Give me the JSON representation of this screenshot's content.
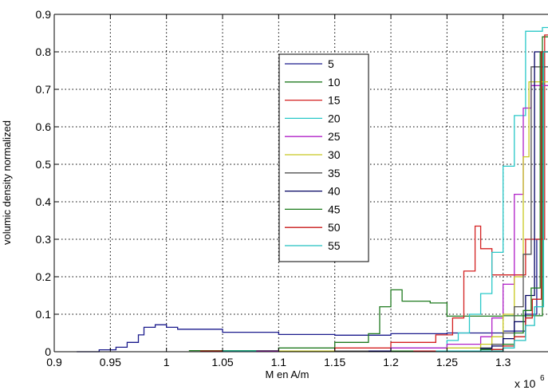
{
  "chart_data": {
    "type": "line",
    "step": true,
    "xlabel": "M en A/m",
    "ylabel": "volumic density normalized",
    "x_multiplier_label": "x 10",
    "x_multiplier_exponent": "6",
    "xlim": [
      0.9,
      1.34
    ],
    "ylim": [
      0,
      0.9
    ],
    "grid": true,
    "legend_position": "upper-center",
    "xticks": [
      0.9,
      0.95,
      1,
      1.05,
      1.1,
      1.15,
      1.2,
      1.25,
      1.3
    ],
    "xtick_labels": [
      "0.9",
      "0.95",
      "1",
      "1.05",
      "1.1",
      "1.15",
      "1.2",
      "1.25",
      "1.3"
    ],
    "yticks": [
      0,
      0.1,
      0.2,
      0.3,
      0.4,
      0.5,
      0.6,
      0.7,
      0.8,
      0.9
    ],
    "ytick_labels": [
      "0",
      "0.1",
      "0.2",
      "0.3",
      "0.4",
      "0.5",
      "0.6",
      "0.7",
      "0.8",
      "0.9"
    ],
    "series": [
      {
        "name": "5",
        "color": "#1a1a8c",
        "x": [
          0.92,
          0.94,
          0.955,
          0.965,
          0.975,
          0.98,
          0.99,
          1.0,
          1.01,
          1.05,
          1.1,
          1.15,
          1.2,
          1.25,
          1.3,
          1.32,
          1.33,
          1.334,
          1.34
        ],
        "y": [
          0.0,
          0.005,
          0.012,
          0.025,
          0.045,
          0.065,
          0.072,
          0.065,
          0.06,
          0.052,
          0.046,
          0.044,
          0.048,
          0.05,
          0.055,
          0.1,
          0.3,
          0.8,
          0.8
        ]
      },
      {
        "name": "10",
        "color": "#1f7a1f",
        "x": [
          1.02,
          1.1,
          1.15,
          1.18,
          1.19,
          1.2,
          1.21,
          1.235,
          1.24,
          1.25,
          1.3,
          1.335,
          1.34
        ],
        "y": [
          0.003,
          0.01,
          0.025,
          0.048,
          0.12,
          0.165,
          0.135,
          0.13,
          0.13,
          0.095,
          0.096,
          0.84,
          0.84
        ]
      },
      {
        "name": "15",
        "color": "#d42020",
        "x": [
          1.03,
          1.15,
          1.2,
          1.24,
          1.255,
          1.265,
          1.275,
          1.28,
          1.29,
          1.32,
          1.337,
          1.34
        ],
        "y": [
          0.002,
          0.01,
          0.025,
          0.045,
          0.09,
          0.215,
          0.335,
          0.275,
          0.205,
          0.3,
          0.845,
          0.845
        ]
      },
      {
        "name": "20",
        "color": "#28c8c8",
        "x": [
          1.05,
          1.2,
          1.25,
          1.26,
          1.27,
          1.28,
          1.29,
          1.3,
          1.31,
          1.32,
          1.335,
          1.34
        ],
        "y": [
          0.002,
          0.01,
          0.03,
          0.05,
          0.1,
          0.155,
          0.265,
          0.495,
          0.63,
          0.855,
          0.865,
          0.865
        ]
      },
      {
        "name": "25",
        "color": "#b020c8",
        "x": [
          1.08,
          1.2,
          1.25,
          1.28,
          1.29,
          1.3,
          1.31,
          1.318,
          1.325,
          1.34
        ],
        "y": [
          0.002,
          0.01,
          0.02,
          0.04,
          0.09,
          0.18,
          0.42,
          0.65,
          0.71,
          0.71
        ]
      },
      {
        "name": "30",
        "color": "#c8c820",
        "x": [
          1.1,
          1.25,
          1.28,
          1.29,
          1.3,
          1.31,
          1.318,
          1.323,
          1.34
        ],
        "y": [
          0.002,
          0.01,
          0.02,
          0.04,
          0.1,
          0.2,
          0.52,
          0.72,
          0.72
        ]
      },
      {
        "name": "35",
        "color": "#505050",
        "x": [
          1.15,
          1.28,
          1.29,
          1.3,
          1.31,
          1.318,
          1.325,
          1.34
        ],
        "y": [
          0.002,
          0.01,
          0.02,
          0.05,
          0.12,
          0.26,
          0.76,
          0.76
        ]
      },
      {
        "name": "40",
        "color": "#000060",
        "x": [
          1.18,
          1.28,
          1.29,
          1.3,
          1.31,
          1.32,
          1.328,
          1.34
        ],
        "y": [
          0.002,
          0.008,
          0.015,
          0.035,
          0.08,
          0.15,
          0.8,
          0.8
        ]
      },
      {
        "name": "45",
        "color": "#1a7a1a",
        "x": [
          1.2,
          1.28,
          1.3,
          1.31,
          1.318,
          1.325,
          1.333,
          1.34
        ],
        "y": [
          0.002,
          0.006,
          0.02,
          0.05,
          0.11,
          0.17,
          0.8,
          0.8
        ]
      },
      {
        "name": "50",
        "color": "#c81818",
        "x": [
          1.22,
          1.29,
          1.3,
          1.31,
          1.32,
          1.326,
          1.334,
          1.34
        ],
        "y": [
          0.002,
          0.006,
          0.015,
          0.04,
          0.09,
          0.14,
          0.8,
          0.8
        ]
      },
      {
        "name": "55",
        "color": "#20c0c0",
        "x": [
          1.24,
          1.3,
          1.31,
          1.32,
          1.328,
          1.336,
          1.34
        ],
        "y": [
          0.002,
          0.01,
          0.03,
          0.07,
          0.12,
          0.8,
          0.8
        ]
      }
    ]
  }
}
